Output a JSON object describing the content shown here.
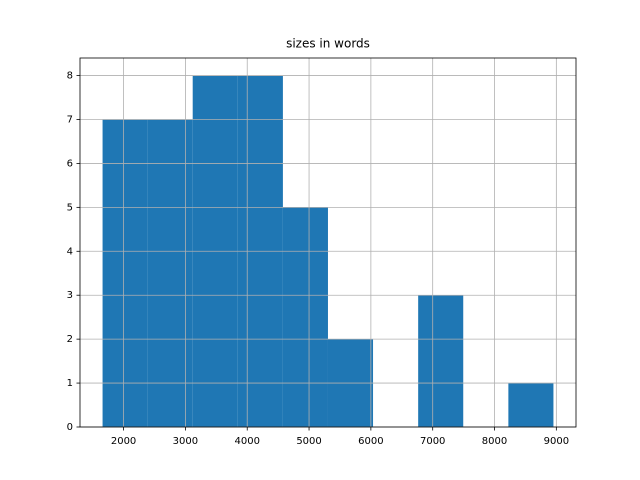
{
  "chart_data": {
    "type": "histogram",
    "title": "sizes in words",
    "bins": [
      1660,
      2389,
      3118,
      3848,
      4577,
      5306,
      6035,
      6765,
      7494,
      8224,
      8953
    ],
    "values": [
      7,
      7,
      8,
      8,
      5,
      2,
      0,
      3,
      0,
      1
    ],
    "color": "#1f77b4",
    "xlim": [
      1295,
      9318
    ],
    "xticks": [
      2000,
      3000,
      4000,
      5000,
      6000,
      7000,
      8000,
      9000
    ],
    "ylim": [
      0,
      8.4
    ],
    "yticks": [
      0,
      1,
      2,
      3,
      4,
      5,
      6,
      7,
      8
    ],
    "grid": true
  }
}
